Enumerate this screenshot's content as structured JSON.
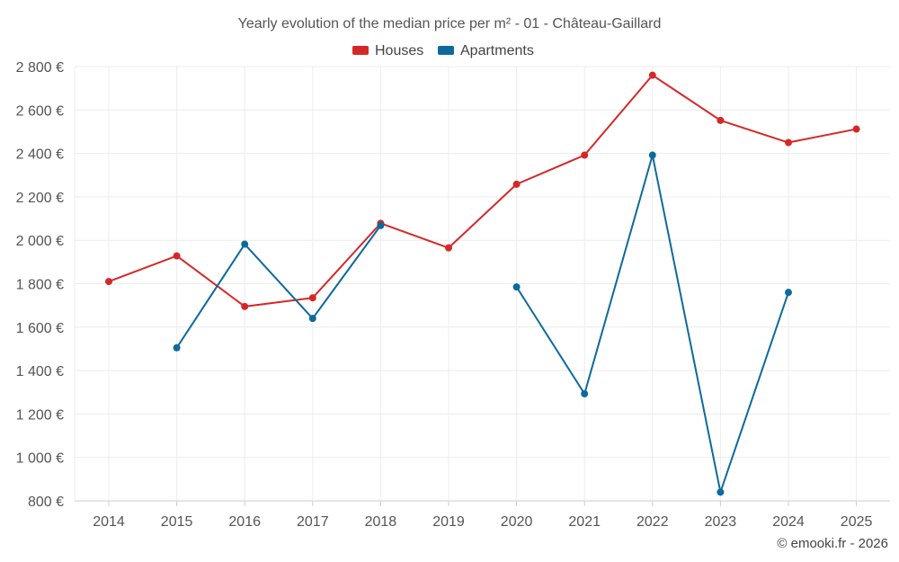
{
  "chart_data": {
    "type": "line",
    "title": "Yearly evolution of the median price per m² - 01 - Château-Gaillard",
    "x": [
      "2014",
      "2015",
      "2016",
      "2017",
      "2018",
      "2019",
      "2020",
      "2021",
      "2022",
      "2023",
      "2024",
      "2025"
    ],
    "series": [
      {
        "name": "Houses",
        "color": "#d62728",
        "values": [
          1810,
          1928,
          1695,
          1735,
          2078,
          1965,
          2258,
          2392,
          2760,
          2552,
          2450,
          2512
        ]
      },
      {
        "name": "Apartments",
        "color": "#0d6a9c",
        "values": [
          null,
          1505,
          1982,
          1640,
          2068,
          null,
          1785,
          1293,
          2392,
          840,
          1760,
          null
        ]
      }
    ],
    "ylim": [
      800,
      2800
    ],
    "yticks": [
      800,
      1000,
      1200,
      1400,
      1600,
      1800,
      2000,
      2200,
      2400,
      2600,
      2800
    ],
    "ytick_labels": [
      "800 €",
      "1 000 €",
      "1 200 €",
      "1 400 €",
      "1 600 €",
      "1 800 €",
      "2 000 €",
      "2 200 €",
      "2 400 €",
      "2 600 €",
      "2 800 €"
    ],
    "xlabel": "",
    "ylabel": "",
    "grid": true,
    "legend": "top-center"
  },
  "credit": "© emooki.fr - 2026"
}
